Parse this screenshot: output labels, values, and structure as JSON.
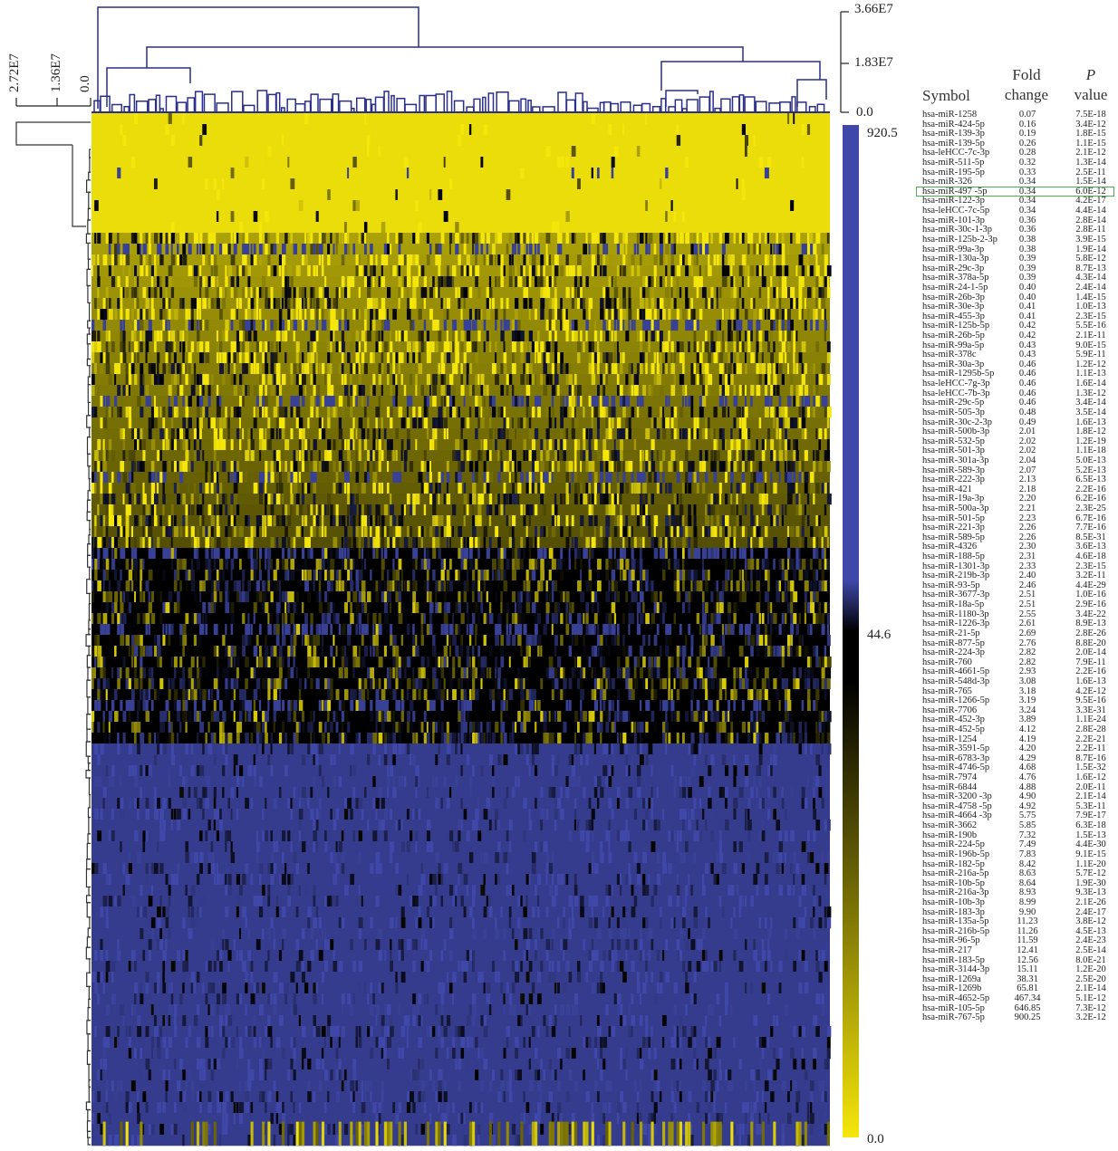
{
  "chart_data": {
    "type": "heatmap",
    "colorbar": {
      "ticks": [
        "920.5",
        "44.6",
        "0.0"
      ],
      "colors": {
        "high": "#3f48a8",
        "mid": "#000000",
        "low": "#f5e60a"
      }
    },
    "column_dendrogram_axis": {
      "ticks": [
        "3.66E7",
        "1.83E7",
        "0.0"
      ]
    },
    "row_dendrogram_axis": {
      "ticks": [
        "2.72E7",
        "1.36E7",
        "0.0"
      ]
    },
    "highlight_color": "#4caf50",
    "highlighted_symbol": "hsa-miR-497 -5p",
    "table_headers": {
      "symbol": "Symbol",
      "fold_line1": "Fold",
      "fold_line2": "change",
      "p_line1": "P",
      "p_line2": "value"
    },
    "rows": [
      {
        "symbol": "hsa-miR-1258",
        "fold": "0.07",
        "p": "7.5E-18"
      },
      {
        "symbol": "hsa-miR-424-5p",
        "fold": "0.16",
        "p": "3.4E-12"
      },
      {
        "symbol": "hsa-miR-139-3p",
        "fold": "0.19",
        "p": "1.8E-15"
      },
      {
        "symbol": "hsa-miR-139-5p",
        "fold": "0.26",
        "p": "1.1E-15"
      },
      {
        "symbol": "hsa-leHCC-7c-3p",
        "fold": "0.28",
        "p": "2.1E-12"
      },
      {
        "symbol": "hsa-miR-511-5p",
        "fold": "0.32",
        "p": "1.3E-14"
      },
      {
        "symbol": "hsa-miR-195-5p",
        "fold": "0.33",
        "p": "2.5E-11"
      },
      {
        "symbol": "hsa-miR-326",
        "fold": "0.34",
        "p": "1.5E-14"
      },
      {
        "symbol": "hsa-miR-497 -5p",
        "fold": "0.34",
        "p": "6.0E-12"
      },
      {
        "symbol": "hsa-miR-122-3p",
        "fold": "0.34",
        "p": "4.2E-17"
      },
      {
        "symbol": "hsa-leHCC-7c-5p",
        "fold": "0.34",
        "p": "4.4E-14"
      },
      {
        "symbol": "hsa-miR-101-3p",
        "fold": "0.36",
        "p": "2.8E-14"
      },
      {
        "symbol": "hsa-miR-30c-1-3p",
        "fold": "0.36",
        "p": "2.8E-11"
      },
      {
        "symbol": "hsa-miR-125b-2-3p",
        "fold": "0.38",
        "p": "3.9E-15"
      },
      {
        "symbol": "hsa-miR-99a-3p",
        "fold": "0.38",
        "p": "1.9E-14"
      },
      {
        "symbol": "hsa-miR-130a-3p",
        "fold": "0.39",
        "p": "5.8E-12"
      },
      {
        "symbol": "hsa-miR-29c-3p",
        "fold": "0.39",
        "p": "8.7E-13"
      },
      {
        "symbol": "hsa-miR-378a-5p",
        "fold": "0.39",
        "p": "4.3E-14"
      },
      {
        "symbol": "hsa-miR-24-1-5p",
        "fold": "0.40",
        "p": "2.4E-14"
      },
      {
        "symbol": "hsa-miR-26b-3p",
        "fold": "0.40",
        "p": "1.4E-15"
      },
      {
        "symbol": "hsa-miR-30e-3p",
        "fold": "0.41",
        "p": "1.0E-13"
      },
      {
        "symbol": "hsa-miR-455-3p",
        "fold": "0.41",
        "p": "2.3E-15"
      },
      {
        "symbol": "hsa-miR-125b-5p",
        "fold": "0.42",
        "p": "5.5E-16"
      },
      {
        "symbol": "hsa-miR-26b-5p",
        "fold": "0.42",
        "p": "2.1E-11"
      },
      {
        "symbol": "hsa-miR-99a-5p",
        "fold": "0.43",
        "p": "9.0E-15"
      },
      {
        "symbol": "hsa-miR-378c",
        "fold": "0.43",
        "p": "5.9E-11"
      },
      {
        "symbol": "hsa-miR-30a-3p",
        "fold": "0.46",
        "p": "1.2E-12"
      },
      {
        "symbol": "hsa-miR-1295b-5p",
        "fold": "0.46",
        "p": "1.1E-13"
      },
      {
        "symbol": "hsa-leHCC-7g-3p",
        "fold": "0.46",
        "p": "1.6E-14"
      },
      {
        "symbol": "hsa-leHCC-7b-3p",
        "fold": "0.46",
        "p": "1.3E-12"
      },
      {
        "symbol": "hsa-miR-29c-5p",
        "fold": "0.46",
        "p": "3.4E-14"
      },
      {
        "symbol": "hsa-miR-505-3p",
        "fold": "0.48",
        "p": "3.5E-14"
      },
      {
        "symbol": "hsa-miR-30c-2-3p",
        "fold": "0.49",
        "p": "1.6E-13"
      },
      {
        "symbol": "hsa-miR-500b-3p",
        "fold": "2.01",
        "p": "1.8E-12"
      },
      {
        "symbol": "hsa-miR-532-5p",
        "fold": "2.02",
        "p": "1.2E-19"
      },
      {
        "symbol": "hsa-miR-501-3p",
        "fold": "2.02",
        "p": "1.1E-18"
      },
      {
        "symbol": "hsa-miR-301a-3p",
        "fold": "2.04",
        "p": "5.0E-13"
      },
      {
        "symbol": "hsa-miR-589-3p",
        "fold": "2.07",
        "p": "5.2E-13"
      },
      {
        "symbol": "hsa-miR-222-3p",
        "fold": "2.13",
        "p": "6.5E-13"
      },
      {
        "symbol": "hsa-miR-421",
        "fold": "2.18",
        "p": "2.2E-16"
      },
      {
        "symbol": "hsa-miR-19a-3p",
        "fold": "2.20",
        "p": "6.2E-16"
      },
      {
        "symbol": "hsa-miR-500a-3p",
        "fold": "2.21",
        "p": "2.3E-25"
      },
      {
        "symbol": "hsa-miR-501-5p",
        "fold": "2.23",
        "p": "6.7E-16"
      },
      {
        "symbol": "hsa-miR-221-3p",
        "fold": "2.26",
        "p": "7.7E-16"
      },
      {
        "symbol": "hsa-miR-589-5p",
        "fold": "2.26",
        "p": "8.5E-31"
      },
      {
        "symbol": "hsa-miR-4326",
        "fold": "2.30",
        "p": "3.6E-13"
      },
      {
        "symbol": "hsa-miR-188-5p",
        "fold": "2.31",
        "p": "4.6E-18"
      },
      {
        "symbol": "hsa-miR-1301-3p",
        "fold": "2.33",
        "p": "2.3E-15"
      },
      {
        "symbol": "hsa-miR-219b-3p",
        "fold": "2.40",
        "p": "3.2E-11"
      },
      {
        "symbol": "hsa-miR-93-5p",
        "fold": "2.46",
        "p": "4.4E-29"
      },
      {
        "symbol": "hsa-miR-3677-3p",
        "fold": "2.51",
        "p": "1.0E-16"
      },
      {
        "symbol": "hsa-miR-18a-5p",
        "fold": "2.51",
        "p": "2.9E-16"
      },
      {
        "symbol": "hsa-miR-1180-3p",
        "fold": "2.55",
        "p": "3.4E-22"
      },
      {
        "symbol": "hsa-miR-1226-3p",
        "fold": "2.61",
        "p": "8.9E-13"
      },
      {
        "symbol": "hsa-miR-21-5p",
        "fold": "2.69",
        "p": "2.8E-26"
      },
      {
        "symbol": "hsa-miR-877-5p",
        "fold": "2.76",
        "p": "8.8E-20"
      },
      {
        "symbol": "hsa-miR-224-3p",
        "fold": "2.82",
        "p": "2.0E-14"
      },
      {
        "symbol": "hsa-miR-760",
        "fold": "2.82",
        "p": "7.9E-11"
      },
      {
        "symbol": "hsa-miR-4661-5p",
        "fold": "2.93",
        "p": "2.2E-16"
      },
      {
        "symbol": "hsa-miR-548d-3p",
        "fold": "3.08",
        "p": "1.6E-13"
      },
      {
        "symbol": "hsa-miR-765",
        "fold": "3.18",
        "p": "4.2E-12"
      },
      {
        "symbol": "hsa-miR-1266-5p",
        "fold": "3.19",
        "p": "9.5E-16"
      },
      {
        "symbol": "hsa-miR-7706",
        "fold": "3.24",
        "p": "3.3E-31"
      },
      {
        "symbol": "hsa-miR-452-3p",
        "fold": "3.89",
        "p": "1.1E-24"
      },
      {
        "symbol": "hsa-miR-452-5p",
        "fold": "4.12",
        "p": "2.8E-28"
      },
      {
        "symbol": "hsa-miR-1254",
        "fold": "4.19",
        "p": "2.2E-21"
      },
      {
        "symbol": "hsa-miR-3591-5p",
        "fold": "4.20",
        "p": "2.2E-11"
      },
      {
        "symbol": "hsa-miR-6783-3p",
        "fold": "4.29",
        "p": "8.7E-16"
      },
      {
        "symbol": "hsa-miR-4746-5p",
        "fold": "4.68",
        "p": "1.5E-32"
      },
      {
        "symbol": "hsa-miR-7974",
        "fold": "4.76",
        "p": "1.6E-12"
      },
      {
        "symbol": "hsa-miR-6844",
        "fold": "4.88",
        "p": "2.0E-11"
      },
      {
        "symbol": "hsa-miR-3200 -3p",
        "fold": "4.90",
        "p": "2.1E-14"
      },
      {
        "symbol": "hsa-miR-4758 -5p",
        "fold": "4.92",
        "p": "5.3E-11"
      },
      {
        "symbol": "hsa-miR-4664 -3p",
        "fold": "5.75",
        "p": "7.9E-17"
      },
      {
        "symbol": "hsa-miR-3662",
        "fold": "5.85",
        "p": "6.3E-18"
      },
      {
        "symbol": "hsa-miR-190b",
        "fold": "7.32",
        "p": "1.5E-13"
      },
      {
        "symbol": "hsa-miR-224-5p",
        "fold": "7.49",
        "p": "4.4E-30"
      },
      {
        "symbol": "hsa-miR-196b-5p",
        "fold": "7.83",
        "p": "9.1E-15"
      },
      {
        "symbol": "hsa-miR-182-5p",
        "fold": "8.42",
        "p": "1.1E-20"
      },
      {
        "symbol": "hsa-miR-216a-5p",
        "fold": "8.63",
        "p": "5.7E-12"
      },
      {
        "symbol": "hsa-miR-10b-5p",
        "fold": "8.64",
        "p": "1.9E-30"
      },
      {
        "symbol": "hsa-miR-216a-3p",
        "fold": "8.93",
        "p": "9.3E-13"
      },
      {
        "symbol": "hsa-miR-10b-3p",
        "fold": "8.99",
        "p": "2.1E-26"
      },
      {
        "symbol": "hsa-miR-183-3p",
        "fold": "9.90",
        "p": "2.4E-17"
      },
      {
        "symbol": "hsa-miR-135a-5p",
        "fold": "11.23",
        "p": "3.8E-12"
      },
      {
        "symbol": "hsa-miR-216b-5p",
        "fold": "11.26",
        "p": "4.5E-13"
      },
      {
        "symbol": "hsa-miR-96-5p",
        "fold": "11.59",
        "p": "2.4E-23"
      },
      {
        "symbol": "hsa-miR-217",
        "fold": "12.41",
        "p": "2.5E-14"
      },
      {
        "symbol": "hsa-miR-183-5p",
        "fold": "12.56",
        "p": "8.0E-21"
      },
      {
        "symbol": "hsa-miR-3144-3p",
        "fold": "15.11",
        "p": "1.2E-20"
      },
      {
        "symbol": "hsa-miR-1269a",
        "fold": "38.31",
        "p": "2.5E-20"
      },
      {
        "symbol": "hsa-miR-1269b",
        "fold": "65.81",
        "p": "2.1E-14"
      },
      {
        "symbol": "hsa-miR-4652-5p",
        "fold": "467.34",
        "p": "5.1E-12"
      },
      {
        "symbol": "hsa-miR-105-5p",
        "fold": "646.85",
        "p": "7.3E-12"
      },
      {
        "symbol": "hsa-miR-767-5p",
        "fold": "900.25",
        "p": "3.2E-12"
      }
    ]
  }
}
